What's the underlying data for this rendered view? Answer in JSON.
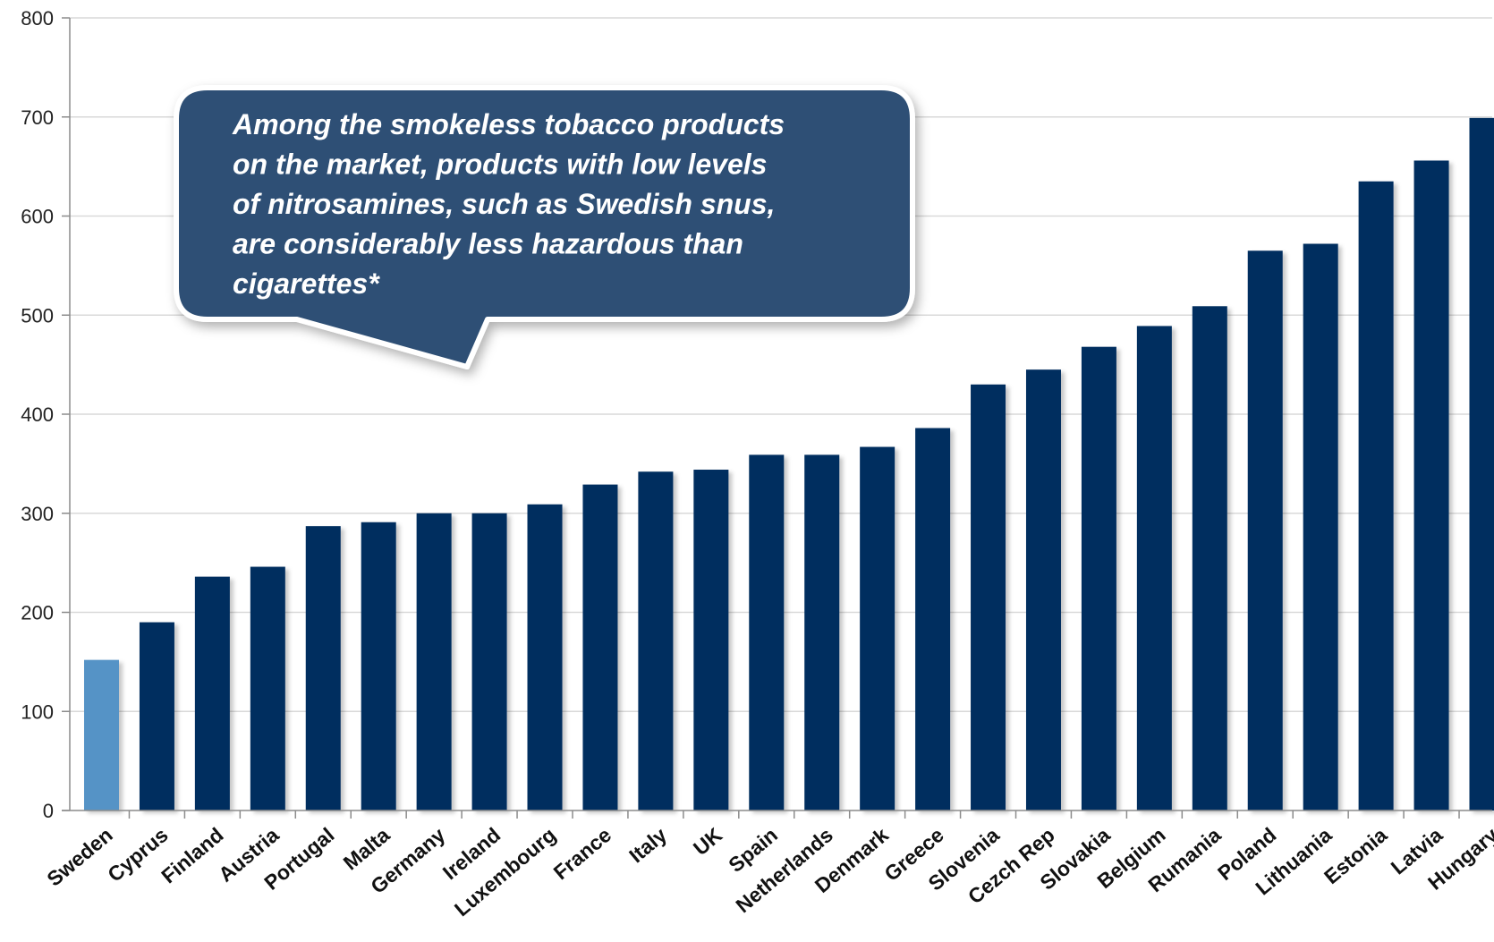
{
  "chart_data": {
    "type": "bar",
    "title": "",
    "xlabel": "",
    "ylabel": "",
    "ylim": [
      0,
      800
    ],
    "yticks": [
      0,
      100,
      200,
      300,
      400,
      500,
      600,
      700,
      800
    ],
    "grid": true,
    "categories": [
      "Sweden",
      "Cyprus",
      "Finland",
      "Austria",
      "Portugal",
      "Malta",
      "Germany",
      "Ireland",
      "Luxembourg",
      "France",
      "Italy",
      "UK",
      "Spain",
      "Netherlands",
      "Denmark",
      "Greece",
      "Slovenia",
      "Cezch Rep",
      "Slovakia",
      "Belgium",
      "Rumania",
      "Poland",
      "Lithuania",
      "Estonia",
      "Latvia",
      "Hungary"
    ],
    "values": [
      152,
      190,
      236,
      246,
      287,
      291,
      300,
      300,
      309,
      329,
      342,
      344,
      359,
      359,
      367,
      386,
      430,
      445,
      468,
      489,
      509,
      565,
      572,
      635,
      656,
      699
    ],
    "colors": {
      "highlight": "#5593c6",
      "default": "#022d5e",
      "callout_fill": "#2e5075",
      "gridline": "#d9d9d9",
      "axis": "#8c8c8c"
    },
    "highlight_category": "Sweden",
    "annotation": {
      "lines": [
        "Among the smokeless tobacco products",
        "on the market, products with low levels",
        "of nitrosamines, such as Swedish snus,",
        "are considerably less hazardous than",
        "cigarettes*"
      ]
    }
  }
}
